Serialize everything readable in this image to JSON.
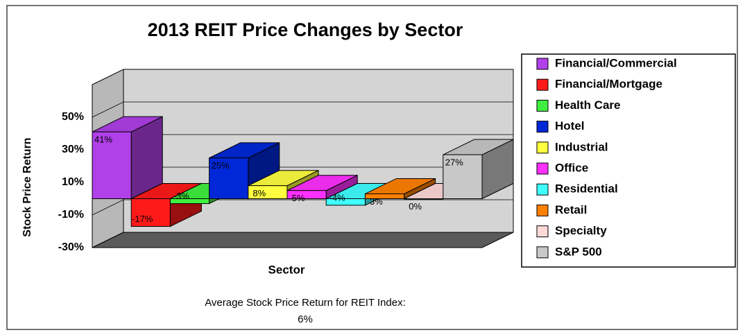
{
  "chart_data": {
    "type": "bar3d",
    "title": "2013 REIT Price Changes by Sector",
    "x_label": "Sector",
    "y_label": "Stock Price Return",
    "categories": [
      "Financial/Commercial",
      "Financial/Mortgage",
      "Health Care",
      "Hotel",
      "Industrial",
      "Office",
      "Residential",
      "Retail",
      "Specialty",
      "S&P 500"
    ],
    "values": [
      41,
      -17,
      -3,
      25,
      8,
      5,
      -4,
      3,
      0,
      27
    ],
    "value_labels": [
      "41%",
      "-17%",
      "-3%",
      "25%",
      "8%",
      "5%",
      "-4%",
      "3%",
      "0%",
      "27%"
    ],
    "colors": [
      "#b040e8",
      "#ff1a1a",
      "#40f040",
      "#0028d8",
      "#ffff40",
      "#ff30ff",
      "#40ffff",
      "#ff8000",
      "#ffd8d8",
      "#c8c8c8"
    ],
    "ylim": [
      -30,
      70
    ],
    "yticks": [
      {
        "value": -30,
        "label": "-30%"
      },
      {
        "value": -10,
        "label": "-10%"
      },
      {
        "value": 10,
        "label": "10%"
      },
      {
        "value": 30,
        "label": "30%"
      },
      {
        "value": 50,
        "label": "50%"
      }
    ],
    "grid": true,
    "legend": "right",
    "annotation": [
      "Average Stock Price Return for REIT Index:",
      "6%"
    ]
  }
}
